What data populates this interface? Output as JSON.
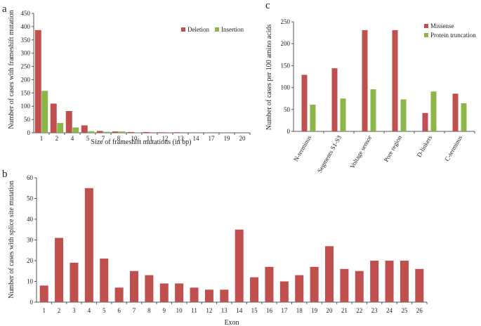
{
  "colors": {
    "primary": "#c0504d",
    "secondary": "#8db64a",
    "axis": "#555555"
  },
  "chart_data": [
    {
      "panel": "a",
      "type": "bar",
      "categories": [
        "1",
        "2",
        "4",
        "5",
        "7",
        "8",
        "10",
        "11",
        "12",
        "13",
        "14",
        "17",
        "19",
        "20"
      ],
      "series": [
        {
          "name": "Deletion",
          "values": [
            387,
            110,
            82,
            28,
            7,
            5,
            3,
            3,
            2,
            2,
            1,
            1,
            1,
            1
          ]
        },
        {
          "name": "Insertion",
          "values": [
            158,
            37,
            20,
            6,
            4,
            5,
            1,
            0,
            0,
            0,
            0,
            0,
            0,
            0
          ]
        }
      ],
      "title": "",
      "xlabel": "Size of frameshift mutations (in bp)",
      "ylabel": "Number of cases with frameshift mutation",
      "ylim": [
        0,
        450
      ],
      "yticks": [
        0,
        50,
        100,
        150,
        200,
        250,
        300,
        350,
        400,
        450
      ],
      "legend": "top-right"
    },
    {
      "panel": "c",
      "type": "bar",
      "categories": [
        "N-terminus",
        "Segments S1-S3",
        "Voltage sensor",
        "Pore region",
        "D-linkers",
        "C-terminus"
      ],
      "series": [
        {
          "name": "Missense",
          "values": [
            129,
            144,
            231,
            231,
            42,
            86
          ]
        },
        {
          "name": "Protein truncation",
          "values": [
            61,
            75,
            96,
            73,
            91,
            64
          ]
        }
      ],
      "title": "",
      "xlabel": "",
      "ylabel": "Number of cases per 100 amino acids",
      "ylim": [
        0,
        250
      ],
      "yticks": [
        0,
        50,
        100,
        150,
        200,
        250
      ],
      "legend": "top-right"
    },
    {
      "panel": "b",
      "type": "bar",
      "categories": [
        "1",
        "2",
        "3",
        "4",
        "5",
        "6",
        "7",
        "8",
        "9",
        "10",
        "11",
        "12",
        "13",
        "14",
        "15",
        "16",
        "17",
        "18",
        "19",
        "20",
        "21",
        "22",
        "23",
        "24",
        "25",
        "26"
      ],
      "series": [
        {
          "name": "Splice site",
          "values": [
            8,
            31,
            19,
            55,
            21,
            7,
            15,
            13,
            9,
            9,
            7,
            6,
            6,
            35,
            12,
            17,
            10,
            13,
            17,
            27,
            16,
            15,
            20,
            20,
            20,
            16
          ]
        }
      ],
      "title": "",
      "xlabel": "Exon",
      "ylabel": "Number of cases with splice site mutation",
      "ylim": [
        0,
        60
      ],
      "yticks": [
        0,
        10,
        20,
        30,
        40,
        50,
        60
      ],
      "legend": "none"
    }
  ]
}
